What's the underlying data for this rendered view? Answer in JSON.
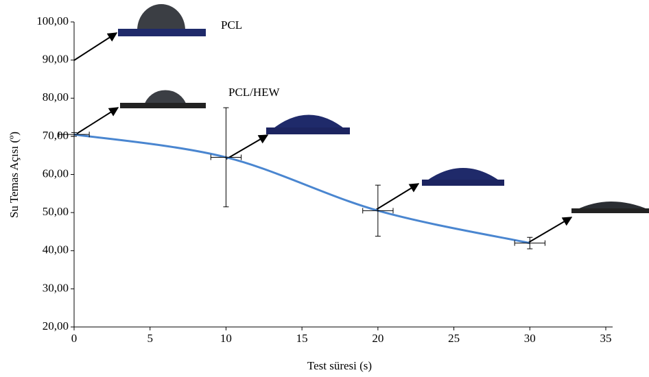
{
  "chart_data": {
    "type": "line",
    "xlabel": "Test süresi (s)",
    "ylabel": "Su Temas Açısı (º)",
    "annotations": [
      "PCL",
      "PCL/HEW"
    ],
    "x": [
      0,
      10,
      20,
      30
    ],
    "series": [
      {
        "color": "#4a86d0",
        "values": [
          70.5,
          64.5,
          50.5,
          42
        ],
        "y_err": [
          0.5,
          13,
          6.7,
          1.5
        ],
        "x_err": [
          1,
          1,
          1,
          1
        ]
      }
    ],
    "xlim": [
      0,
      35
    ],
    "xticks": [
      0,
      5,
      10,
      15,
      20,
      25,
      30,
      35
    ],
    "ylim": [
      20,
      100
    ],
    "yticks": [
      {
        "value": 20,
        "label": "20,00"
      },
      {
        "value": 30,
        "label": "30,00"
      },
      {
        "value": 40,
        "label": "40,00"
      },
      {
        "value": 50,
        "label": "50,00"
      },
      {
        "value": 60,
        "label": "60,00"
      },
      {
        "value": 70,
        "label": "70,00"
      },
      {
        "value": 80,
        "label": "80,00"
      },
      {
        "value": 90,
        "label": "90,00"
      },
      {
        "value": 100,
        "label": "100,00"
      }
    ]
  }
}
